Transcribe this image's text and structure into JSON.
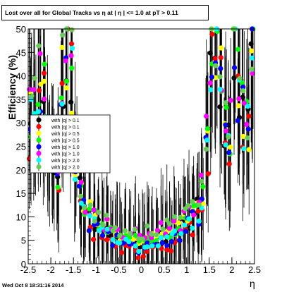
{
  "chart_data": {
    "type": "scatter",
    "title": "Lost over all for Global Tracks vs   η at |  η | <= 1.0 at pT > 0.11",
    "xlabel": "η",
    "ylabel": "Efficiency (%)",
    "xlim": [
      -2.5,
      2.5
    ],
    "ylim": [
      0,
      50
    ],
    "x_ticks": [
      "-2.5",
      "-2",
      "-1.5",
      "-1",
      "-0.5",
      "0",
      "0.5",
      "1",
      "1.5",
      "2",
      "2.5"
    ],
    "y_ticks": [
      "0",
      "5",
      "10",
      "15",
      "20",
      "25",
      "30",
      "35",
      "40",
      "45",
      "50"
    ],
    "grid": false,
    "legend_position": "center-left",
    "series": [
      {
        "name": "with |q| > 0.1",
        "color": "#000000",
        "dy": 0
      },
      {
        "name": "with |q| > 0.1",
        "color": "#ff0000",
        "dy": -2
      },
      {
        "name": "with |q| > 0.5",
        "color": "#ffff00",
        "dy": 1
      },
      {
        "name": "with |q| > 0.5",
        "color": "#00ff00",
        "dy": 0.5
      },
      {
        "name": "with |q| > 1.0",
        "color": "#0000ff",
        "dy": -1
      },
      {
        "name": "with |q| > 1.0",
        "color": "#ff00ff",
        "dy": 1.5
      },
      {
        "name": "with |q| > 2.0",
        "color": "#00ffff",
        "dy": -0.5
      },
      {
        "name": "with |q| > 2.0",
        "color": "#66cc55",
        "dy": 2
      }
    ],
    "curve": {
      "x": [
        -2.45,
        -2.35,
        -2.25,
        -2.15,
        -2.05,
        -1.95,
        -1.85,
        -1.75,
        -1.65,
        -1.55,
        -1.45,
        -1.35,
        -1.25,
        -1.15,
        -1.05,
        -0.95,
        -0.85,
        -0.75,
        -0.65,
        -0.55,
        -0.45,
        -0.35,
        -0.25,
        -0.15,
        -0.05,
        0.05,
        0.15,
        0.25,
        0.35,
        0.45,
        0.55,
        0.65,
        0.75,
        0.85,
        0.95,
        1.05,
        1.15,
        1.25,
        1.35,
        1.45,
        1.55,
        1.65,
        1.75,
        1.85,
        1.95,
        2.05,
        2.15,
        2.25,
        2.35,
        2.45
      ],
      "y": [
        30,
        33,
        40,
        36,
        28,
        22,
        18,
        42,
        47,
        40,
        22,
        15,
        12,
        10,
        9,
        8,
        7,
        7,
        6,
        6,
        5,
        5,
        5,
        5,
        4,
        4,
        5,
        5,
        5,
        6,
        6,
        6,
        7,
        7,
        8,
        9,
        10,
        12,
        15,
        25,
        45,
        44,
        38,
        30,
        28,
        48,
        40,
        32,
        30,
        50
      ]
    }
  },
  "footer": "Wed Oct  8 18:31:16 2014"
}
